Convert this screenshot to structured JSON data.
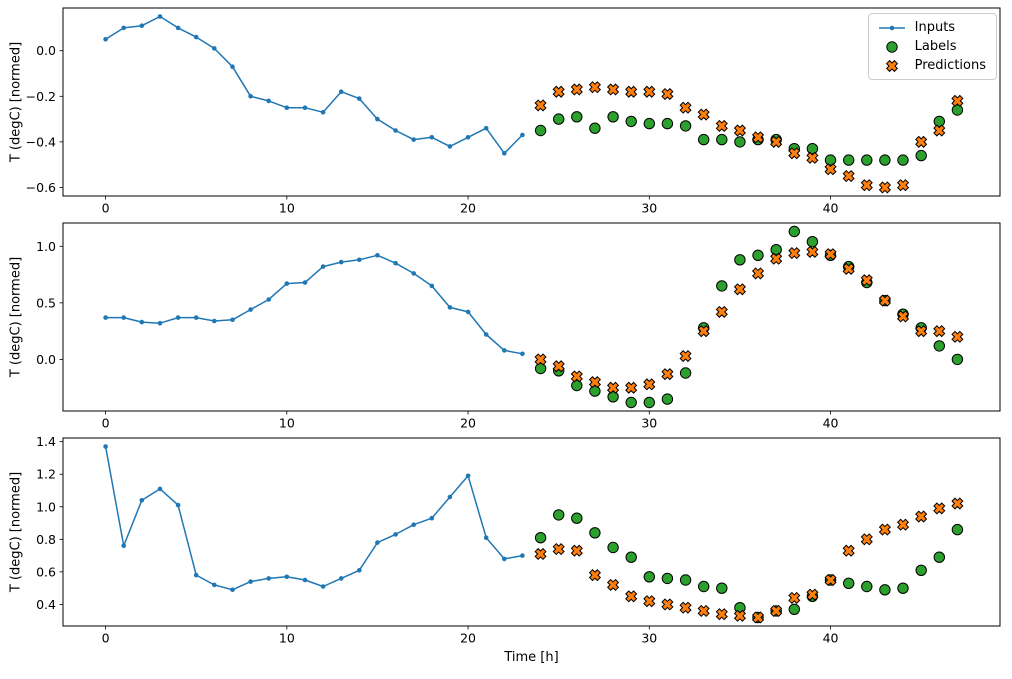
{
  "figure": {
    "xlabel": "Time [h]",
    "ylabel": "T (degC) [normed]",
    "background": "#ffffff",
    "legend": {
      "items": [
        {
          "label": "Inputs",
          "color": "#1f77b4",
          "marker": "line-dot"
        },
        {
          "label": "Labels",
          "color": "#2ca02c",
          "marker": "circle"
        },
        {
          "label": "Predictions",
          "color": "#ff7f0e",
          "marker": "x"
        }
      ]
    }
  },
  "chart_data": [
    {
      "type": "line",
      "title": "",
      "xlabel": "",
      "ylabel": "T (degC) [normed]",
      "xlim": [
        -2.35,
        49.35
      ],
      "ylim": [
        -0.6375,
        0.1875
      ],
      "xticks": [
        0,
        10,
        20,
        30,
        40
      ],
      "yticks": [
        0.0,
        -0.2,
        -0.4,
        -0.6
      ],
      "grid": false,
      "series": [
        {
          "name": "Inputs",
          "type": "line",
          "color": "#1f77b4",
          "x": [
            0,
            1,
            2,
            3,
            4,
            5,
            6,
            7,
            8,
            9,
            10,
            11,
            12,
            13,
            14,
            15,
            16,
            17,
            18,
            19,
            20,
            21,
            22,
            23
          ],
          "y": [
            0.05,
            0.1,
            0.11,
            0.15,
            0.1,
            0.06,
            0.01,
            -0.07,
            -0.2,
            -0.22,
            -0.25,
            -0.25,
            -0.27,
            -0.18,
            -0.21,
            -0.3,
            -0.35,
            -0.39,
            -0.38,
            -0.42,
            -0.38,
            -0.34,
            -0.45,
            -0.37
          ]
        },
        {
          "name": "Labels",
          "type": "scatter-circle",
          "color": "#2ca02c",
          "edge": "#000000",
          "x": [
            24,
            25,
            26,
            27,
            28,
            29,
            30,
            31,
            32,
            33,
            34,
            35,
            36,
            37,
            38,
            39,
            40,
            41,
            42,
            43,
            44,
            45,
            46,
            47
          ],
          "y": [
            -0.35,
            -0.3,
            -0.29,
            -0.34,
            -0.29,
            -0.31,
            -0.32,
            -0.32,
            -0.33,
            -0.39,
            -0.39,
            -0.4,
            -0.39,
            -0.39,
            -0.43,
            -0.43,
            -0.48,
            -0.48,
            -0.48,
            -0.48,
            -0.48,
            -0.46,
            -0.31,
            -0.26
          ]
        },
        {
          "name": "Predictions",
          "type": "scatter-x",
          "color": "#ff7f0e",
          "edge": "#000000",
          "x": [
            24,
            25,
            26,
            27,
            28,
            29,
            30,
            31,
            32,
            33,
            34,
            35,
            36,
            37,
            38,
            39,
            40,
            41,
            42,
            43,
            44,
            45,
            46,
            47
          ],
          "y": [
            -0.24,
            -0.18,
            -0.17,
            -0.16,
            -0.17,
            -0.18,
            -0.18,
            -0.19,
            -0.25,
            -0.28,
            -0.33,
            -0.35,
            -0.38,
            -0.4,
            -0.45,
            -0.47,
            -0.52,
            -0.55,
            -0.59,
            -0.6,
            -0.59,
            -0.4,
            -0.35,
            -0.22
          ]
        }
      ]
    },
    {
      "type": "line",
      "title": "",
      "xlabel": "",
      "ylabel": "T (degC) [normed]",
      "xlim": [
        -2.35,
        49.35
      ],
      "ylim": [
        -0.4555,
        1.2055
      ],
      "xticks": [
        0,
        10,
        20,
        30,
        40
      ],
      "yticks": [
        1.0,
        0.5,
        0.0
      ],
      "grid": false,
      "series": [
        {
          "name": "Inputs",
          "type": "line",
          "color": "#1f77b4",
          "x": [
            0,
            1,
            2,
            3,
            4,
            5,
            6,
            7,
            8,
            9,
            10,
            11,
            12,
            13,
            14,
            15,
            16,
            17,
            18,
            19,
            20,
            21,
            22,
            23
          ],
          "y": [
            0.37,
            0.37,
            0.33,
            0.32,
            0.37,
            0.37,
            0.34,
            0.35,
            0.44,
            0.53,
            0.67,
            0.68,
            0.82,
            0.86,
            0.88,
            0.92,
            0.85,
            0.76,
            0.65,
            0.46,
            0.42,
            0.22,
            0.08,
            0.05
          ]
        },
        {
          "name": "Labels",
          "type": "scatter-circle",
          "color": "#2ca02c",
          "edge": "#000000",
          "x": [
            24,
            25,
            26,
            27,
            28,
            29,
            30,
            31,
            32,
            33,
            34,
            35,
            36,
            37,
            38,
            39,
            40,
            41,
            42,
            43,
            44,
            45,
            46,
            47
          ],
          "y": [
            -0.08,
            -0.1,
            -0.23,
            -0.28,
            -0.33,
            -0.38,
            -0.38,
            -0.35,
            -0.12,
            0.28,
            0.65,
            0.88,
            0.92,
            0.97,
            1.13,
            1.04,
            0.92,
            0.82,
            0.68,
            0.52,
            0.4,
            0.28,
            0.12,
            0.0
          ]
        },
        {
          "name": "Predictions",
          "type": "scatter-x",
          "color": "#ff7f0e",
          "edge": "#000000",
          "x": [
            24,
            25,
            26,
            27,
            28,
            29,
            30,
            31,
            32,
            33,
            34,
            35,
            36,
            37,
            38,
            39,
            40,
            41,
            42,
            43,
            44,
            45,
            46,
            47
          ],
          "y": [
            0.0,
            -0.06,
            -0.15,
            -0.2,
            -0.25,
            -0.25,
            -0.22,
            -0.13,
            0.03,
            0.25,
            0.42,
            0.62,
            0.76,
            0.89,
            0.94,
            0.95,
            0.93,
            0.8,
            0.7,
            0.52,
            0.38,
            0.25,
            0.25,
            0.2
          ]
        }
      ]
    },
    {
      "type": "line",
      "title": "",
      "xlabel": "Time [h]",
      "ylabel": "T (degC) [normed]",
      "xlim": [
        -2.35,
        49.35
      ],
      "ylim": [
        0.2675,
        1.4225
      ],
      "xticks": [
        0,
        10,
        20,
        30,
        40
      ],
      "yticks": [
        1.4,
        1.2,
        1.0,
        0.8,
        0.6,
        0.4
      ],
      "grid": false,
      "series": [
        {
          "name": "Inputs",
          "type": "line",
          "color": "#1f77b4",
          "x": [
            0,
            1,
            2,
            3,
            4,
            5,
            6,
            7,
            8,
            9,
            10,
            11,
            12,
            13,
            14,
            15,
            16,
            17,
            18,
            19,
            20,
            21,
            22,
            23
          ],
          "y": [
            1.37,
            0.76,
            1.04,
            1.11,
            1.01,
            0.58,
            0.52,
            0.49,
            0.54,
            0.56,
            0.57,
            0.55,
            0.51,
            0.56,
            0.61,
            0.78,
            0.83,
            0.89,
            0.93,
            1.06,
            1.19,
            0.81,
            0.68,
            0.7
          ]
        },
        {
          "name": "Labels",
          "type": "scatter-circle",
          "color": "#2ca02c",
          "edge": "#000000",
          "x": [
            24,
            25,
            26,
            27,
            28,
            29,
            30,
            31,
            32,
            33,
            34,
            35,
            36,
            37,
            38,
            39,
            40,
            41,
            42,
            43,
            44,
            45,
            46,
            47
          ],
          "y": [
            0.81,
            0.95,
            0.93,
            0.84,
            0.75,
            0.69,
            0.57,
            0.56,
            0.55,
            0.51,
            0.5,
            0.38,
            0.32,
            0.36,
            0.37,
            0.45,
            0.55,
            0.53,
            0.51,
            0.49,
            0.5,
            0.61,
            0.69,
            0.86
          ]
        },
        {
          "name": "Predictions",
          "type": "scatter-x",
          "color": "#ff7f0e",
          "edge": "#000000",
          "x": [
            24,
            25,
            26,
            27,
            28,
            29,
            30,
            31,
            32,
            33,
            34,
            35,
            36,
            37,
            38,
            39,
            40,
            41,
            42,
            43,
            44,
            45,
            46,
            47
          ],
          "y": [
            0.71,
            0.74,
            0.73,
            0.58,
            0.52,
            0.45,
            0.42,
            0.4,
            0.38,
            0.36,
            0.34,
            0.33,
            0.32,
            0.36,
            0.44,
            0.46,
            0.55,
            0.73,
            0.8,
            0.86,
            0.89,
            0.94,
            0.99,
            1.02
          ]
        }
      ]
    }
  ]
}
